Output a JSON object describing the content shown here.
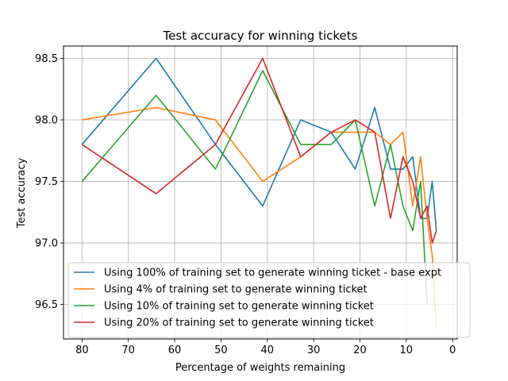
{
  "chart_data": {
    "type": "line",
    "title": "Test accuracy for winning tickets",
    "xlabel": "Percentage of weights remaining",
    "ylabel": "Test accuracy",
    "xlim": [
      84,
      -1
    ],
    "ylim": [
      96.22,
      98.6
    ],
    "x_inverted": true,
    "grid": true,
    "legend_position": "lower-left",
    "xticks": [
      80,
      70,
      60,
      50,
      40,
      30,
      20,
      10,
      0
    ],
    "yticks": [
      96.5,
      97.0,
      97.5,
      98.0,
      98.5
    ],
    "ytick_labels": [
      "96.5",
      "97.0",
      "97.5",
      "98.0",
      "98.5"
    ],
    "series": [
      {
        "name": "Using 100% of training set to generate winning ticket - base expt",
        "color": "#1f77b4",
        "x": [
          80,
          64,
          51.2,
          41,
          32.8,
          26.2,
          21,
          16.8,
          13.4,
          10.7,
          8.6,
          6.9,
          5.5,
          4.4,
          3.5
        ],
        "y": [
          97.8,
          98.5,
          97.8,
          97.3,
          98.0,
          97.9,
          97.6,
          98.1,
          97.6,
          97.6,
          97.7,
          97.2,
          97.2,
          97.5,
          97.1
        ]
      },
      {
        "name": "Using 4% of training set to generate winning ticket",
        "color": "#ff7f0e",
        "x": [
          80,
          64,
          51.2,
          41,
          32.8,
          26.2,
          21,
          16.8,
          13.4,
          10.7,
          8.6,
          6.9,
          5.5,
          4.4,
          3.5
        ],
        "y": [
          98.0,
          98.1,
          98.0,
          97.5,
          97.7,
          97.9,
          97.9,
          97.9,
          97.8,
          97.9,
          97.3,
          97.7,
          97.2,
          96.9,
          96.3
        ]
      },
      {
        "name": "Using 10% of training set to generate winning ticket",
        "color": "#2ca02c",
        "x": [
          80,
          64,
          51.2,
          41,
          32.8,
          26.2,
          21,
          16.8,
          13.4,
          10.7,
          8.6,
          6.9,
          5.5
        ],
        "y": [
          97.5,
          98.2,
          97.6,
          98.4,
          97.8,
          97.8,
          98.0,
          97.3,
          97.8,
          97.3,
          97.1,
          97.5,
          96.5
        ]
      },
      {
        "name": "Using 20% of training set to generate winning ticket",
        "color": "#d62728",
        "x": [
          80,
          64,
          51.2,
          41,
          32.8,
          26.2,
          21,
          16.8,
          13.4,
          10.7,
          8.6,
          6.9,
          5.5,
          4.4,
          3.5
        ],
        "y": [
          97.8,
          97.4,
          97.8,
          98.5,
          97.7,
          97.9,
          98.0,
          97.9,
          97.2,
          97.7,
          97.5,
          97.2,
          97.3,
          97.0,
          97.1
        ]
      }
    ]
  }
}
